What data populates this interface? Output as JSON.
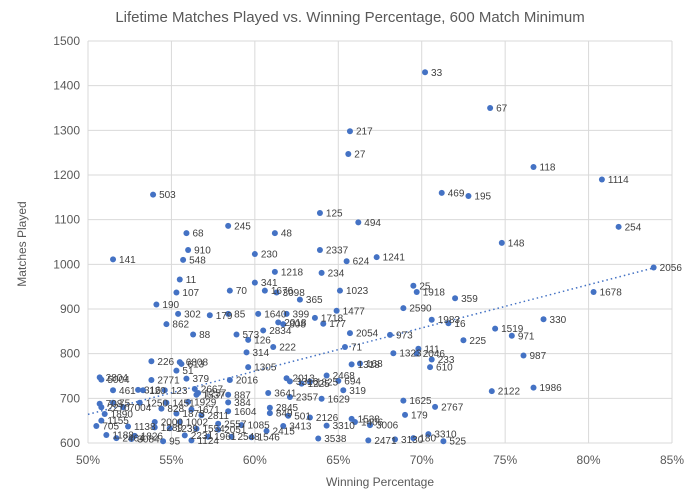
{
  "chart_data": {
    "type": "scatter",
    "title": "Lifetime Matches Played vs. Winning Percentage, 600 Match Minimum",
    "xlabel": "Winning Percentage",
    "ylabel": "Matches Played",
    "xlim": [
      0.5,
      0.85
    ],
    "ylim": [
      600,
      1500
    ],
    "x_ticks": [
      0.5,
      0.55,
      0.6,
      0.65,
      0.7,
      0.75,
      0.8,
      0.85
    ],
    "x_tick_labels": [
      "50%",
      "55%",
      "60%",
      "65%",
      "70%",
      "75%",
      "80%",
      "85%"
    ],
    "y_ticks": [
      600,
      700,
      800,
      900,
      1000,
      1100,
      1200,
      1300,
      1400,
      1500
    ],
    "y_tick_labels": [
      "600",
      "700",
      "800",
      "900",
      "1000",
      "1100",
      "1200",
      "1300",
      "1400",
      "1500"
    ],
    "grid": true,
    "point_color": "#4472c4",
    "trendline": {
      "type": "linear",
      "x": [
        0.5,
        0.84
      ],
      "y": [
        664,
        993
      ]
    },
    "points": [
      {
        "x": 0.702,
        "y": 1430,
        "label": "33"
      },
      {
        "x": 0.741,
        "y": 1350,
        "label": "67"
      },
      {
        "x": 0.657,
        "y": 1298,
        "label": "217"
      },
      {
        "x": 0.656,
        "y": 1247,
        "label": "27"
      },
      {
        "x": 0.767,
        "y": 1218,
        "label": "118"
      },
      {
        "x": 0.808,
        "y": 1190,
        "label": "1114"
      },
      {
        "x": 0.712,
        "y": 1160,
        "label": "469"
      },
      {
        "x": 0.728,
        "y": 1153,
        "label": "195"
      },
      {
        "x": 0.539,
        "y": 1156,
        "label": "503"
      },
      {
        "x": 0.639,
        "y": 1115,
        "label": "125"
      },
      {
        "x": 0.662,
        "y": 1094,
        "label": "494"
      },
      {
        "x": 0.584,
        "y": 1086,
        "label": "245"
      },
      {
        "x": 0.818,
        "y": 1084,
        "label": "254"
      },
      {
        "x": 0.559,
        "y": 1070,
        "label": "68"
      },
      {
        "x": 0.612,
        "y": 1070,
        "label": "48"
      },
      {
        "x": 0.748,
        "y": 1048,
        "label": "148"
      },
      {
        "x": 0.56,
        "y": 1032,
        "label": "910"
      },
      {
        "x": 0.639,
        "y": 1032,
        "label": "2337"
      },
      {
        "x": 0.6,
        "y": 1023,
        "label": "230"
      },
      {
        "x": 0.557,
        "y": 1010,
        "label": "548"
      },
      {
        "x": 0.655,
        "y": 1007,
        "label": "624"
      },
      {
        "x": 0.673,
        "y": 1016,
        "label": "1241"
      },
      {
        "x": 0.515,
        "y": 1011,
        "label": "141"
      },
      {
        "x": 0.612,
        "y": 983,
        "label": "1218"
      },
      {
        "x": 0.64,
        "y": 981,
        "label": "234"
      },
      {
        "x": 0.839,
        "y": 993,
        "label": "2056"
      },
      {
        "x": 0.555,
        "y": 966,
        "label": "11"
      },
      {
        "x": 0.6,
        "y": 959,
        "label": "341"
      },
      {
        "x": 0.695,
        "y": 952,
        "label": "25"
      },
      {
        "x": 0.803,
        "y": 938,
        "label": "1678"
      },
      {
        "x": 0.553,
        "y": 937,
        "label": "107"
      },
      {
        "x": 0.585,
        "y": 941,
        "label": "70"
      },
      {
        "x": 0.606,
        "y": 941,
        "label": "1676"
      },
      {
        "x": 0.613,
        "y": 937,
        "label": "3098"
      },
      {
        "x": 0.651,
        "y": 941,
        "label": "1023"
      },
      {
        "x": 0.697,
        "y": 938,
        "label": "1918"
      },
      {
        "x": 0.72,
        "y": 924,
        "label": "359"
      },
      {
        "x": 0.627,
        "y": 921,
        "label": "365"
      },
      {
        "x": 0.541,
        "y": 910,
        "label": "190"
      },
      {
        "x": 0.689,
        "y": 902,
        "label": "2590"
      },
      {
        "x": 0.649,
        "y": 896,
        "label": "1477"
      },
      {
        "x": 0.554,
        "y": 889,
        "label": "302"
      },
      {
        "x": 0.573,
        "y": 886,
        "label": "179"
      },
      {
        "x": 0.584,
        "y": 889,
        "label": "85"
      },
      {
        "x": 0.602,
        "y": 889,
        "label": "1640"
      },
      {
        "x": 0.619,
        "y": 889,
        "label": "399"
      },
      {
        "x": 0.614,
        "y": 870,
        "label": "2018"
      },
      {
        "x": 0.617,
        "y": 866,
        "label": "808"
      },
      {
        "x": 0.636,
        "y": 880,
        "label": "1718"
      },
      {
        "x": 0.706,
        "y": 876,
        "label": "1983"
      },
      {
        "x": 0.716,
        "y": 868,
        "label": "16"
      },
      {
        "x": 0.773,
        "y": 877,
        "label": "330"
      },
      {
        "x": 0.744,
        "y": 856,
        "label": "1519"
      },
      {
        "x": 0.547,
        "y": 866,
        "label": "862"
      },
      {
        "x": 0.641,
        "y": 867,
        "label": "177"
      },
      {
        "x": 0.754,
        "y": 840,
        "label": "971"
      },
      {
        "x": 0.563,
        "y": 843,
        "label": "88"
      },
      {
        "x": 0.589,
        "y": 843,
        "label": "573"
      },
      {
        "x": 0.605,
        "y": 852,
        "label": "2834"
      },
      {
        "x": 0.596,
        "y": 831,
        "label": "126"
      },
      {
        "x": 0.657,
        "y": 846,
        "label": "2054"
      },
      {
        "x": 0.681,
        "y": 842,
        "label": "973"
      },
      {
        "x": 0.725,
        "y": 830,
        "label": "225"
      },
      {
        "x": 0.611,
        "y": 815,
        "label": "222"
      },
      {
        "x": 0.654,
        "y": 815,
        "label": "71"
      },
      {
        "x": 0.698,
        "y": 811,
        "label": "111"
      },
      {
        "x": 0.697,
        "y": 800,
        "label": "2046"
      },
      {
        "x": 0.683,
        "y": 801,
        "label": "1323"
      },
      {
        "x": 0.595,
        "y": 803,
        "label": "314"
      },
      {
        "x": 0.761,
        "y": 796,
        "label": "987"
      },
      {
        "x": 0.538,
        "y": 783,
        "label": "226"
      },
      {
        "x": 0.555,
        "y": 781,
        "label": "6808"
      },
      {
        "x": 0.556,
        "y": 777,
        "label": "613"
      },
      {
        "x": 0.553,
        "y": 762,
        "label": "51"
      },
      {
        "x": 0.658,
        "y": 776,
        "label": "1318"
      },
      {
        "x": 0.663,
        "y": 778,
        "label": "168"
      },
      {
        "x": 0.706,
        "y": 787,
        "label": "233"
      },
      {
        "x": 0.705,
        "y": 770,
        "label": "610"
      },
      {
        "x": 0.596,
        "y": 770,
        "label": "1305"
      },
      {
        "x": 0.507,
        "y": 747,
        "label": "2804"
      },
      {
        "x": 0.508,
        "y": 742,
        "label": "5004"
      },
      {
        "x": 0.538,
        "y": 741,
        "label": "2771"
      },
      {
        "x": 0.559,
        "y": 744,
        "label": "379"
      },
      {
        "x": 0.585,
        "y": 741,
        "label": "2016"
      },
      {
        "x": 0.619,
        "y": 745,
        "label": "2013"
      },
      {
        "x": 0.643,
        "y": 751,
        "label": "2468"
      },
      {
        "x": 0.621,
        "y": 738,
        "label": "3316"
      },
      {
        "x": 0.633,
        "y": 737,
        "label": "1825"
      },
      {
        "x": 0.65,
        "y": 739,
        "label": "694"
      },
      {
        "x": 0.628,
        "y": 733,
        "label": "1225"
      },
      {
        "x": 0.653,
        "y": 718,
        "label": "319"
      },
      {
        "x": 0.515,
        "y": 718,
        "label": "461"
      },
      {
        "x": 0.53,
        "y": 719,
        "label": "316"
      },
      {
        "x": 0.533,
        "y": 718,
        "label": "120"
      },
      {
        "x": 0.546,
        "y": 718,
        "label": "123"
      },
      {
        "x": 0.564,
        "y": 721,
        "label": "2667"
      },
      {
        "x": 0.566,
        "y": 712,
        "label": "1257"
      },
      {
        "x": 0.565,
        "y": 708,
        "label": "1537"
      },
      {
        "x": 0.584,
        "y": 708,
        "label": "887"
      },
      {
        "x": 0.608,
        "y": 712,
        "label": "3641"
      },
      {
        "x": 0.621,
        "y": 703,
        "label": "2357"
      },
      {
        "x": 0.64,
        "y": 699,
        "label": "1629"
      },
      {
        "x": 0.767,
        "y": 724,
        "label": "1986"
      },
      {
        "x": 0.742,
        "y": 716,
        "label": "2122"
      },
      {
        "x": 0.689,
        "y": 695,
        "label": "1625"
      },
      {
        "x": 0.708,
        "y": 681,
        "label": "2767"
      },
      {
        "x": 0.507,
        "y": 688,
        "label": "708"
      },
      {
        "x": 0.515,
        "y": 690,
        "label": "75"
      },
      {
        "x": 0.531,
        "y": 690,
        "label": "1250"
      },
      {
        "x": 0.547,
        "y": 690,
        "label": "1451"
      },
      {
        "x": 0.56,
        "y": 692,
        "label": "1929"
      },
      {
        "x": 0.584,
        "y": 691,
        "label": "384"
      },
      {
        "x": 0.508,
        "y": 680,
        "label": "2270"
      },
      {
        "x": 0.521,
        "y": 680,
        "label": "7004"
      },
      {
        "x": 0.544,
        "y": 677,
        "label": "828"
      },
      {
        "x": 0.562,
        "y": 675,
        "label": "1671"
      },
      {
        "x": 0.584,
        "y": 671,
        "label": "1604"
      },
      {
        "x": 0.609,
        "y": 679,
        "label": "2845"
      },
      {
        "x": 0.609,
        "y": 667,
        "label": "849"
      },
      {
        "x": 0.62,
        "y": 661,
        "label": "501"
      },
      {
        "x": 0.51,
        "y": 665,
        "label": "1890"
      },
      {
        "x": 0.553,
        "y": 666,
        "label": "1873"
      },
      {
        "x": 0.568,
        "y": 662,
        "label": "2811"
      },
      {
        "x": 0.69,
        "y": 663,
        "label": "179"
      },
      {
        "x": 0.633,
        "y": 657,
        "label": "2126"
      },
      {
        "x": 0.658,
        "y": 654,
        "label": "1538"
      },
      {
        "x": 0.66,
        "y": 647,
        "label": "1406"
      },
      {
        "x": 0.508,
        "y": 650,
        "label": "1155"
      },
      {
        "x": 0.54,
        "y": 647,
        "label": "2000"
      },
      {
        "x": 0.555,
        "y": 647,
        "label": "1002"
      },
      {
        "x": 0.578,
        "y": 643,
        "label": "2557"
      },
      {
        "x": 0.592,
        "y": 640,
        "label": "1085"
      },
      {
        "x": 0.617,
        "y": 638,
        "label": "3413"
      },
      {
        "x": 0.643,
        "y": 639,
        "label": "3310"
      },
      {
        "x": 0.669,
        "y": 640,
        "label": "3006"
      },
      {
        "x": 0.505,
        "y": 638,
        "label": "705"
      },
      {
        "x": 0.524,
        "y": 637,
        "label": "1138"
      },
      {
        "x": 0.54,
        "y": 635,
        "label": "1289"
      },
      {
        "x": 0.549,
        "y": 633,
        "label": "1239"
      },
      {
        "x": 0.565,
        "y": 632,
        "label": "1554"
      },
      {
        "x": 0.578,
        "y": 630,
        "label": "2051"
      },
      {
        "x": 0.607,
        "y": 627,
        "label": "2415"
      },
      {
        "x": 0.511,
        "y": 618,
        "label": "1188"
      },
      {
        "x": 0.528,
        "y": 616,
        "label": "1826"
      },
      {
        "x": 0.558,
        "y": 617,
        "label": "2231"
      },
      {
        "x": 0.572,
        "y": 614,
        "label": "1961"
      },
      {
        "x": 0.586,
        "y": 614,
        "label": "2548"
      },
      {
        "x": 0.598,
        "y": 613,
        "label": "1546"
      },
      {
        "x": 0.704,
        "y": 620,
        "label": "3310"
      },
      {
        "x": 0.517,
        "y": 611,
        "label": "2464"
      },
      {
        "x": 0.526,
        "y": 609,
        "label": "3084"
      },
      {
        "x": 0.545,
        "y": 604,
        "label": "95"
      },
      {
        "x": 0.562,
        "y": 606,
        "label": "1124"
      },
      {
        "x": 0.638,
        "y": 610,
        "label": "3538"
      },
      {
        "x": 0.668,
        "y": 606,
        "label": "2471"
      },
      {
        "x": 0.684,
        "y": 608,
        "label": "3130"
      },
      {
        "x": 0.695,
        "y": 611,
        "label": "180"
      },
      {
        "x": 0.713,
        "y": 604,
        "label": "525"
      }
    ]
  }
}
